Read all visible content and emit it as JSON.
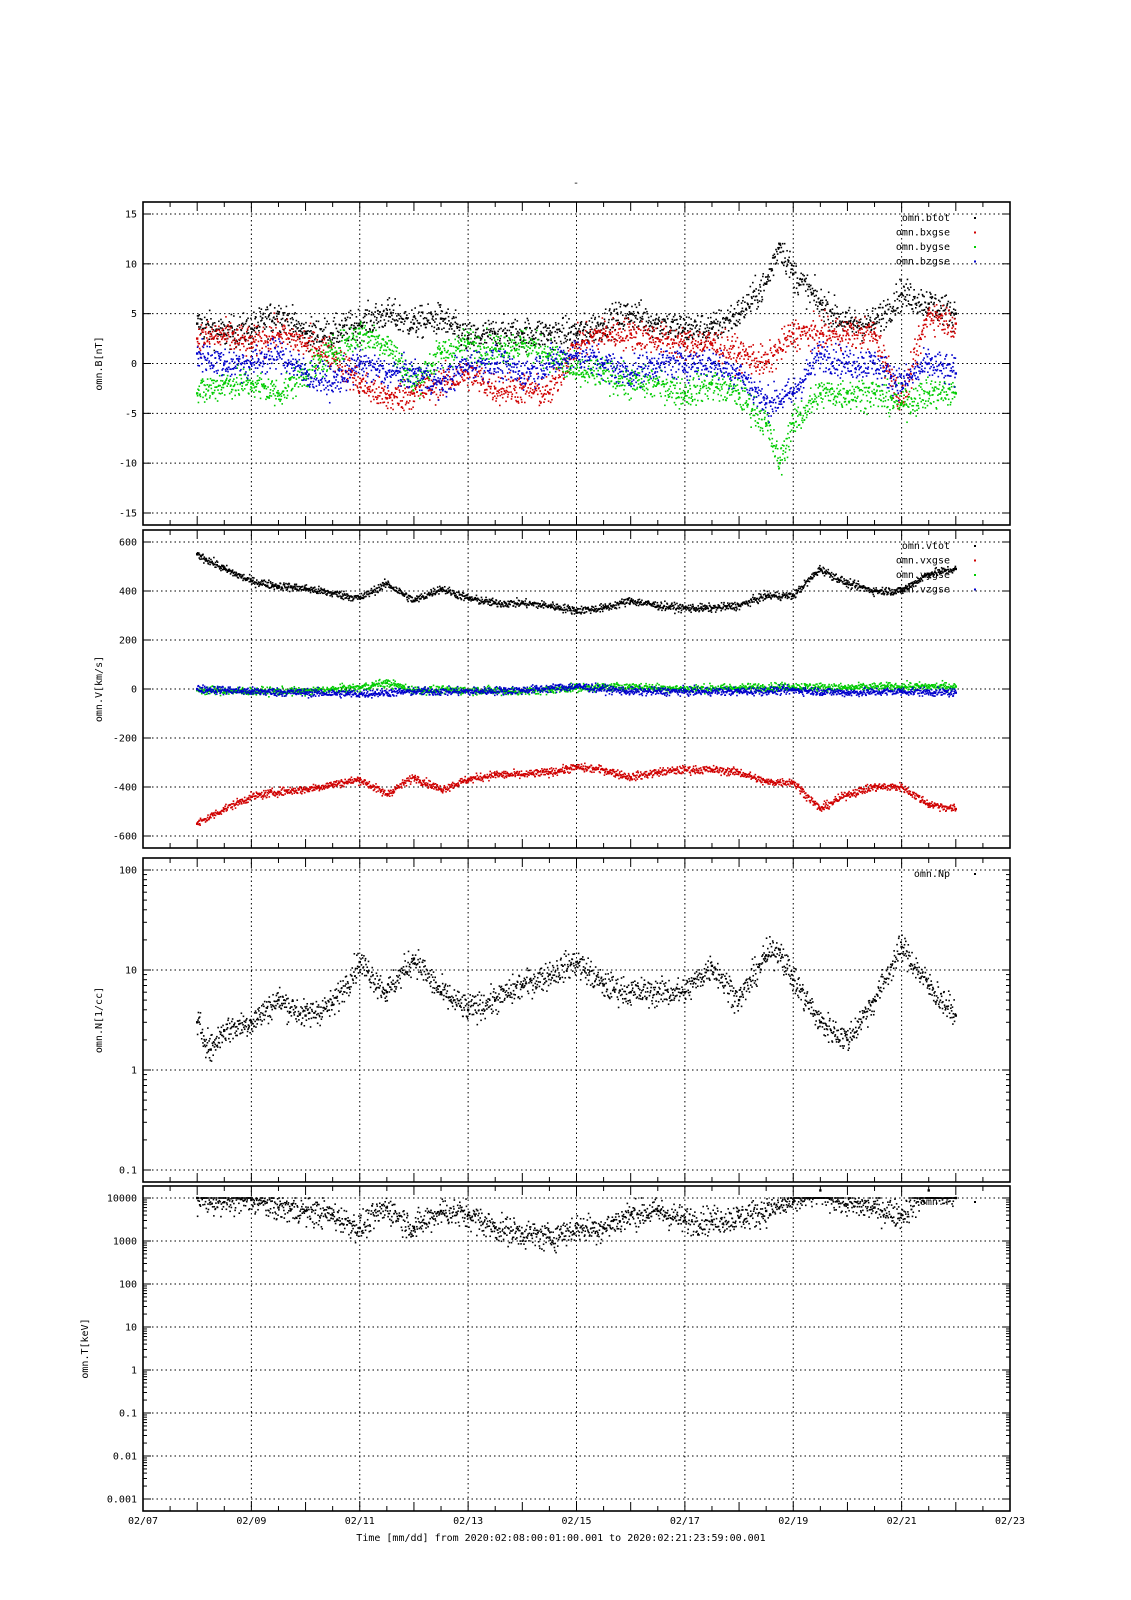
{
  "figure": {
    "top_mark": "-",
    "time_axis": {
      "xlabel": "Time [mm/dd]  from 2020:02:08:00:01:00.001  to  2020:02:21:23:59:00.001",
      "ticks": [
        "02/07",
        "02/09",
        "02/11",
        "02/13",
        "02/15",
        "02/17",
        "02/19",
        "02/21",
        "02/23"
      ],
      "range_days": [
        7,
        23
      ]
    }
  },
  "chart_data": [
    {
      "type": "scatter",
      "ylabel": "omn.B[nT]",
      "yscale": "linear",
      "ylim": [
        -15,
        15
      ],
      "yticks": [
        "15",
        "10",
        "5",
        "0",
        "-5",
        "-10",
        "-15"
      ],
      "legend": "top-right",
      "series": [
        {
          "name": "omn.btot",
          "color": "#000000",
          "x": [
            "02/08",
            "02/08 12:00",
            "02/09",
            "02/09 12:00",
            "02/10",
            "02/10 12:00",
            "02/11",
            "02/11 12:00",
            "02/12",
            "02/12 12:00",
            "02/13",
            "02/13 12:00",
            "02/14",
            "02/14 12:00",
            "02/15",
            "02/15 12:00",
            "02/16",
            "02/16 12:00",
            "02/17",
            "02/17 12:00",
            "02/18",
            "02/18 12:00",
            "02/18 18:00",
            "02/19",
            "02/19 12:00",
            "02/20",
            "02/20 12:00",
            "02/21",
            "02/21 12:00",
            "02/22"
          ],
          "y": [
            4,
            3,
            3.5,
            5,
            3,
            3,
            4,
            5,
            4,
            4.5,
            2.5,
            3,
            3,
            3,
            3,
            4,
            5,
            4,
            3.5,
            3.5,
            5,
            8,
            12,
            9,
            6,
            4,
            4,
            7,
            6,
            5
          ]
        },
        {
          "name": "omn.bxgse",
          "color": "#d00000",
          "x": [
            "02/08",
            "02/08 12:00",
            "02/09",
            "02/09 12:00",
            "02/10",
            "02/10 12:00",
            "02/11",
            "02/11 12:00",
            "02/12",
            "02/12 12:00",
            "02/13",
            "02/13 12:00",
            "02/14",
            "02/14 12:00",
            "02/15",
            "02/15 12:00",
            "02/16",
            "02/16 12:00",
            "02/17",
            "02/17 12:00",
            "02/18",
            "02/18 12:00",
            "02/19",
            "02/19 12:00",
            "02/20",
            "02/20 12:00",
            "02/21",
            "02/21 12:00",
            "02/22"
          ],
          "y": [
            2.5,
            2.8,
            2,
            3,
            2,
            1,
            -2,
            -3.5,
            -3,
            -2,
            -1,
            -2.5,
            -2.5,
            -3,
            2,
            3,
            3,
            2.5,
            2,
            2,
            1,
            0,
            3,
            3,
            3,
            3,
            -4,
            5,
            4
          ]
        },
        {
          "name": "omn.bygse",
          "color": "#00cc00",
          "x": [
            "02/08",
            "02/08 12:00",
            "02/09",
            "02/09 12:00",
            "02/10",
            "02/10 12:00",
            "02/11",
            "02/11 12:00",
            "02/12",
            "02/12 12:00",
            "02/13",
            "02/13 12:00",
            "02/14",
            "02/14 12:00",
            "02/15",
            "02/15 12:00",
            "02/16",
            "02/16 12:00",
            "02/17",
            "02/17 12:00",
            "02/18",
            "02/18 12:00",
            "02/18 18:00",
            "02/19",
            "02/19 12:00",
            "02/20",
            "02/20 12:00",
            "02/21",
            "02/21 12:00",
            "02/22"
          ],
          "y": [
            -3,
            -2,
            -2,
            -3,
            -1,
            1,
            3,
            2,
            -2,
            1,
            2,
            1.5,
            2,
            1,
            -1,
            -1,
            -2,
            -2,
            -3,
            -2,
            -3,
            -6,
            -10,
            -6,
            -3,
            -3,
            -3,
            -4,
            -3,
            -3
          ]
        },
        {
          "name": "omn.bzgse",
          "color": "#0000cc",
          "x": [
            "02/08",
            "02/08 12:00",
            "02/09",
            "02/09 12:00",
            "02/10",
            "02/10 12:00",
            "02/11",
            "02/11 12:00",
            "02/12",
            "02/12 12:00",
            "02/13",
            "02/13 12:00",
            "02/14",
            "02/14 12:00",
            "02/15",
            "02/15 12:00",
            "02/16",
            "02/16 12:00",
            "02/17",
            "02/17 12:00",
            "02/18",
            "02/18 12:00",
            "02/19",
            "02/19 12:00",
            "02/20",
            "02/20 12:00",
            "02/21",
            "02/21 12:00",
            "02/22"
          ],
          "y": [
            1,
            0,
            0,
            1,
            -1,
            -2,
            0,
            -1,
            -1,
            -2,
            0,
            0,
            -1,
            0,
            1,
            0,
            -1,
            0,
            0,
            0,
            -1,
            -4,
            -3,
            1,
            0,
            0,
            -2,
            0,
            -1
          ]
        }
      ]
    },
    {
      "type": "scatter",
      "ylabel": "omn.V[km/s]",
      "yscale": "linear",
      "ylim": [
        -600,
        600
      ],
      "yticks": [
        "600",
        "400",
        "200",
        "0",
        "-200",
        "-400",
        "-600"
      ],
      "legend": "top-right",
      "series": [
        {
          "name": "omn.vtot",
          "color": "#000000",
          "x": [
            "02/08",
            "02/08 12:00",
            "02/09",
            "02/09 12:00",
            "02/10",
            "02/10 12:00",
            "02/11",
            "02/11 12:00",
            "02/12",
            "02/12 12:00",
            "02/13",
            "02/13 12:00",
            "02/14",
            "02/14 12:00",
            "02/15",
            "02/15 12:00",
            "02/16",
            "02/16 12:00",
            "02/17",
            "02/17 12:00",
            "02/18",
            "02/18 12:00",
            "02/19",
            "02/19 12:00",
            "02/20",
            "02/20 12:00",
            "02/21",
            "02/21 12:00",
            "02/22"
          ],
          "y": [
            550,
            490,
            440,
            420,
            410,
            390,
            370,
            430,
            360,
            410,
            370,
            350,
            350,
            340,
            320,
            330,
            360,
            340,
            330,
            330,
            340,
            380,
            380,
            490,
            430,
            400,
            400,
            470,
            490
          ]
        },
        {
          "name": "omn.vxgse",
          "color": "#d00000",
          "x": [
            "02/08",
            "02/08 12:00",
            "02/09",
            "02/09 12:00",
            "02/10",
            "02/10 12:00",
            "02/11",
            "02/11 12:00",
            "02/12",
            "02/12 12:00",
            "02/13",
            "02/13 12:00",
            "02/14",
            "02/14 12:00",
            "02/15",
            "02/15 12:00",
            "02/16",
            "02/16 12:00",
            "02/17",
            "02/17 12:00",
            "02/18",
            "02/18 12:00",
            "02/19",
            "02/19 12:00",
            "02/20",
            "02/20 12:00",
            "02/21",
            "02/21 12:00",
            "02/22"
          ],
          "y": [
            -550,
            -490,
            -440,
            -420,
            -410,
            -390,
            -370,
            -430,
            -360,
            -410,
            -370,
            -350,
            -350,
            -340,
            -320,
            -330,
            -360,
            -340,
            -330,
            -330,
            -340,
            -380,
            -380,
            -490,
            -430,
            -400,
            -400,
            -470,
            -490
          ]
        },
        {
          "name": "omn.vygse",
          "color": "#00cc00",
          "x": [
            "02/08",
            "02/09",
            "02/10",
            "02/11",
            "02/11 12:00",
            "02/12",
            "02/13",
            "02/14",
            "02/15",
            "02/16",
            "02/17",
            "02/18",
            "02/19",
            "02/20",
            "02/21",
            "02/22"
          ],
          "y": [
            -5,
            -10,
            -10,
            5,
            25,
            -5,
            -5,
            -10,
            5,
            10,
            0,
            5,
            10,
            5,
            10,
            10
          ]
        },
        {
          "name": "omn.vzgse",
          "color": "#0000cc",
          "x": [
            "02/08",
            "02/09",
            "02/10",
            "02/11",
            "02/12",
            "02/13",
            "02/14",
            "02/15",
            "02/16",
            "02/17",
            "02/18",
            "02/19",
            "02/20",
            "02/21",
            "02/22"
          ],
          "y": [
            0,
            -10,
            -15,
            -20,
            -10,
            -10,
            -5,
            10,
            -10,
            -10,
            -10,
            -5,
            -15,
            -10,
            -15
          ]
        }
      ]
    },
    {
      "type": "scatter",
      "ylabel": "omn.N[1/cc]",
      "yscale": "log",
      "ylim": [
        0.1,
        100
      ],
      "yticks": [
        "100",
        "10",
        "1",
        "0.1"
      ],
      "legend": "top-right",
      "series": [
        {
          "name": "omn.Np",
          "color": "#000000",
          "x": [
            "02/08",
            "02/08 06:00",
            "02/08 12:00",
            "02/09",
            "02/09 12:00",
            "02/10",
            "02/10 12:00",
            "02/11",
            "02/11 12:00",
            "02/12",
            "02/12 12:00",
            "02/13",
            "02/13 12:00",
            "02/14",
            "02/14 12:00",
            "02/15",
            "02/15 12:00",
            "02/16",
            "02/16 12:00",
            "02/17",
            "02/17 12:00",
            "02/18",
            "02/18 12:00",
            "02/18 18:00",
            "02/19",
            "02/19 12:00",
            "02/20",
            "02/20 12:00",
            "02/21",
            "02/21 12:00",
            "02/22"
          ],
          "y": [
            3,
            1.6,
            2.5,
            3,
            5,
            3.5,
            4.5,
            12,
            6,
            13,
            6,
            4,
            5,
            7,
            9,
            12,
            7,
            6,
            6,
            6,
            11,
            5,
            14,
            16,
            8,
            3,
            2,
            5,
            17,
            7,
            3.5
          ]
        }
      ]
    },
    {
      "type": "scatter",
      "ylabel": "omn.T[keV]",
      "yscale": "log",
      "ylim": [
        0.001,
        10000
      ],
      "yticks": [
        "10000",
        "1000",
        "100",
        "10",
        "1",
        "0.1",
        "0.01",
        "0.001"
      ],
      "legend": "top-right",
      "series": [
        {
          "name": "omn.T",
          "color": "#000000",
          "x": [
            "02/08",
            "02/08 12:00",
            "02/09",
            "02/09 12:00",
            "02/10",
            "02/10 12:00",
            "02/11",
            "02/11 12:00",
            "02/12",
            "02/12 12:00",
            "02/13",
            "02/13 12:00",
            "02/14",
            "02/14 12:00",
            "02/15",
            "02/15 12:00",
            "02/16",
            "02/16 12:00",
            "02/17",
            "02/17 12:00",
            "02/18",
            "02/18 12:00",
            "02/19",
            "02/19 12:00",
            "02/20",
            "02/20 12:00",
            "02/21",
            "02/21 12:00",
            "02/22"
          ],
          "y": [
            10000,
            8000,
            9000,
            6000,
            5000,
            4000,
            2000,
            6000,
            2000,
            5000,
            4000,
            2000,
            1500,
            1200,
            2000,
            2000,
            4000,
            5000,
            3000,
            3000,
            3500,
            5000,
            8000,
            15000,
            7000,
            6000,
            4000,
            15000,
            10000
          ]
        }
      ]
    }
  ]
}
